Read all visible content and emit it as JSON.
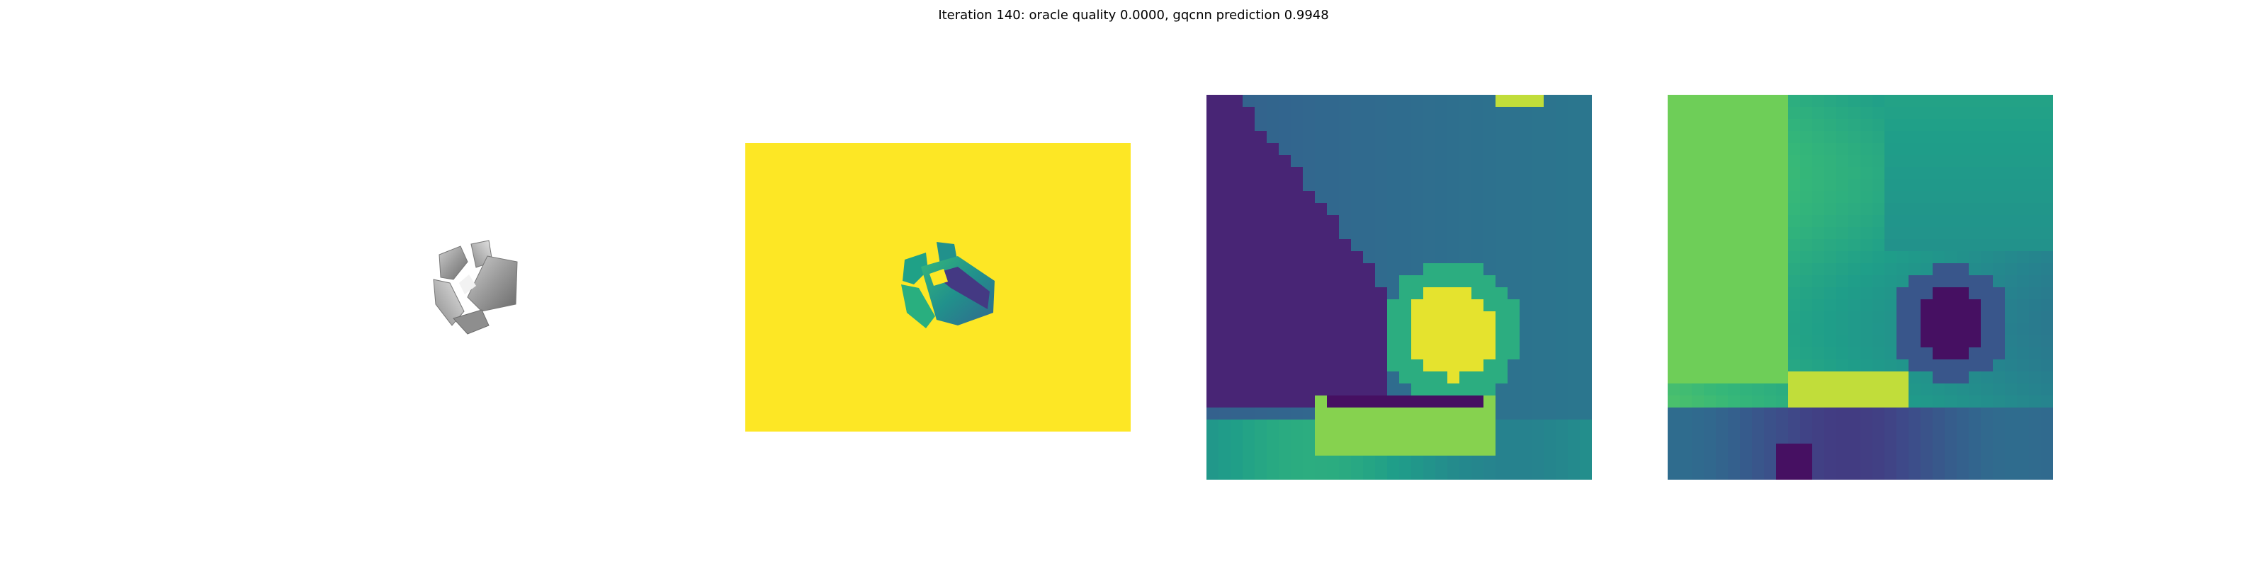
{
  "figure": {
    "title": "Iteration 140: oracle quality 0.0000, gqcnn prediction 0.9948"
  },
  "panels": [
    {
      "name": "rendered-object",
      "colormap": "gray"
    },
    {
      "name": "depth-image",
      "colormap": "viridis",
      "background_color": "#fde725"
    },
    {
      "name": "depth-crop",
      "colormap": "viridis",
      "grid": [
        32,
        32
      ]
    },
    {
      "name": "depth-crop-normalized",
      "colormap": "viridis",
      "grid": [
        32,
        32
      ]
    }
  ],
  "colors": {
    "viridis_low": "#440154",
    "viridis_mid": "#21918c",
    "viridis_high": "#fde725"
  }
}
